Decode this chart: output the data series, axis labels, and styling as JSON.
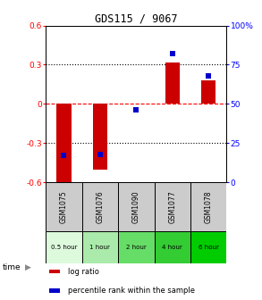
{
  "title": "GDS115 / 9067",
  "samples": [
    "GSM1075",
    "GSM1076",
    "GSM1090",
    "GSM1077",
    "GSM1078"
  ],
  "time_labels": [
    "0.5 hour",
    "1 hour",
    "2 hour",
    "4 hour",
    "6 hour"
  ],
  "time_colors": [
    "#ddfadd",
    "#aaeaaa",
    "#66dd66",
    "#33cc33",
    "#00cc00"
  ],
  "log_ratio": [
    -0.62,
    -0.5,
    0.0,
    0.32,
    0.18
  ],
  "percentile_rank": [
    17,
    18,
    46,
    82,
    68
  ],
  "bar_color": "#cc0000",
  "dot_color": "#0000cc",
  "ylim_left": [
    -0.6,
    0.6
  ],
  "ylim_right": [
    0,
    100
  ],
  "yticks_left": [
    -0.6,
    -0.3,
    0.0,
    0.3,
    0.6
  ],
  "yticks_right": [
    0,
    25,
    50,
    75,
    100
  ],
  "ytick_labels_left": [
    "-0.6",
    "-0.3",
    "0",
    "0.3",
    "0.6"
  ],
  "ytick_labels_right": [
    "0",
    "25",
    "50",
    "75",
    "100%"
  ],
  "hline_red": 0.0,
  "hlines_black": [
    -0.3,
    0.3
  ],
  "legend_items": [
    "log ratio",
    "percentile rank within the sample"
  ],
  "bg_color": "#ffffff",
  "plot_bg": "#ffffff",
  "header_bg": "#cccccc",
  "bar_width": 0.4
}
